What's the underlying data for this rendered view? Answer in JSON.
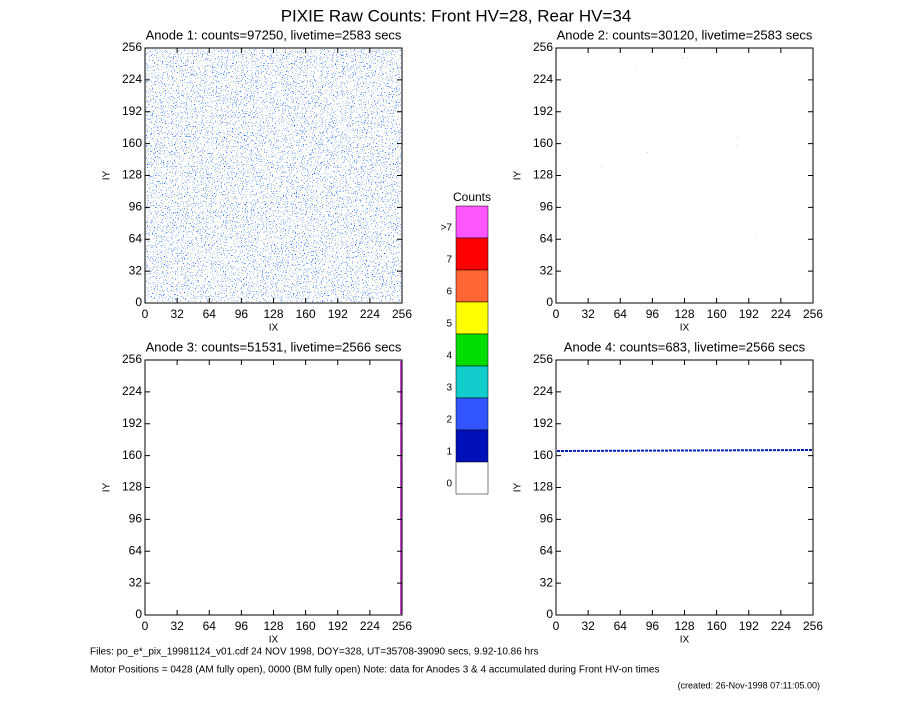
{
  "chart_data": {
    "type": "image",
    "title": "PIXIE Raw Counts:  Front HV=28, Rear HV=34",
    "xlabel": "IX",
    "ylabel": "IY",
    "xlim": [
      0,
      256
    ],
    "ylim": [
      0,
      256
    ],
    "xticks": [
      0,
      32,
      64,
      96,
      128,
      160,
      192,
      224,
      256
    ],
    "yticks": [
      0,
      32,
      64,
      96,
      128,
      160,
      192,
      224,
      256
    ],
    "panels": [
      {
        "title": "Anode 1: counts=97250, livetime=2583 secs"
      },
      {
        "title": "Anode 2: counts=30120, livetime=2583 secs"
      },
      {
        "title": "Anode 3: counts=51531, livetime=2566 secs"
      },
      {
        "title": "Anode 4: counts=683, livetime=2566 secs"
      }
    ],
    "colorbar": {
      "title": "Counts",
      "categories": [
        ">7",
        "7",
        "6",
        "5",
        "4",
        "3",
        "2",
        "1",
        "0"
      ],
      "colors": [
        "#ff55ff",
        "#ff0000",
        "#ff6633",
        "#ffff00",
        "#00dd00",
        "#11cccc",
        "#3355ff",
        "#0011bb",
        "#ffffff"
      ]
    },
    "footer": [
      "Files: po_e*_pix_19981124_v01.cdf    24 NOV 1998, DOY=328, UT=35708-39090 secs,  9.92-10.86 hrs",
      "Motor Positions = 0428 (AM fully open), 0000 (BM fully open)    Note: data for Anodes 3 & 4 accumulated during Front HV-on times",
      "(created: 26-Nov-1998 07:11:05.00)"
    ]
  }
}
